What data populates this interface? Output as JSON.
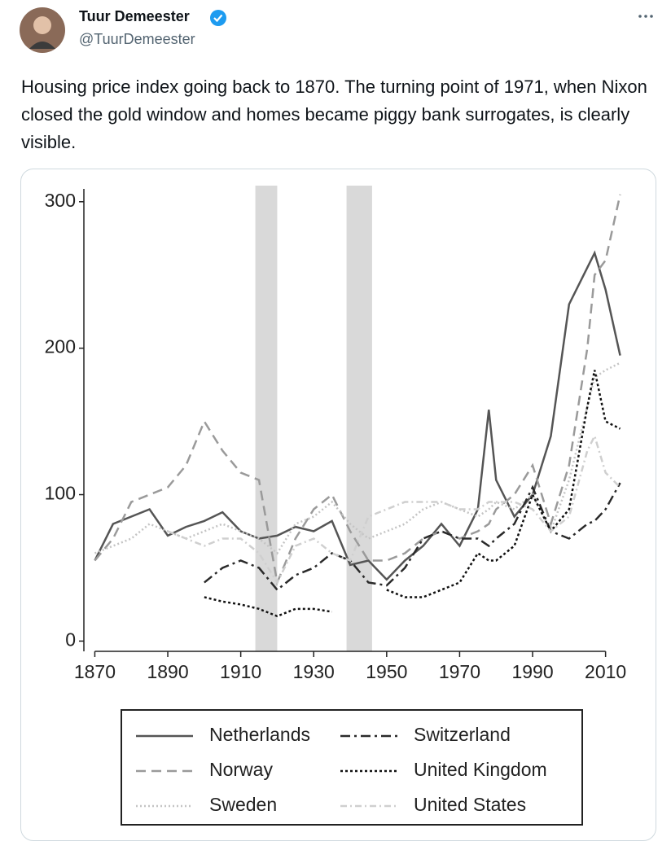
{
  "tweet": {
    "author": {
      "name": "Tuur Demeester",
      "handle": "@TuurDemeester"
    },
    "text": "Housing price index going back to 1870. The turning point of 1971, when Nixon closed the gold window and homes became piggy bank surrogates, is clearly visible."
  },
  "chart_data": {
    "type": "line",
    "x": [
      1870,
      1875,
      1880,
      1885,
      1890,
      1895,
      1900,
      1905,
      1910,
      1915,
      1920,
      1925,
      1930,
      1935,
      1940,
      1945,
      1950,
      1955,
      1960,
      1965,
      1970,
      1975,
      1978,
      1980,
      1985,
      1990,
      1995,
      2000,
      2005,
      2007,
      2010,
      2014
    ],
    "series": [
      {
        "name": "Netherlands",
        "color": "#555555",
        "dash": "none",
        "values": [
          55,
          80,
          85,
          90,
          72,
          78,
          82,
          88,
          75,
          70,
          72,
          78,
          75,
          82,
          52,
          55,
          42,
          55,
          65,
          80,
          65,
          90,
          158,
          110,
          85,
          100,
          140,
          230,
          255,
          265,
          240,
          195
        ]
      },
      {
        "name": "Norway",
        "color": "#9a9a9a",
        "dash": "12,7",
        "values": [
          55,
          70,
          95,
          100,
          105,
          120,
          150,
          130,
          115,
          110,
          40,
          70,
          90,
          100,
          75,
          55,
          55,
          60,
          70,
          75,
          70,
          75,
          80,
          90,
          100,
          120,
          80,
          120,
          200,
          250,
          260,
          305
        ]
      },
      {
        "name": "Sweden",
        "color": "#c4c4c4",
        "dash": "2,3",
        "values": [
          60,
          65,
          70,
          80,
          75,
          70,
          75,
          80,
          75,
          70,
          60,
          80,
          85,
          95,
          80,
          70,
          75,
          80,
          90,
          95,
          90,
          85,
          90,
          95,
          90,
          100,
          75,
          110,
          160,
          180,
          185,
          190
        ]
      },
      {
        "name": "Switzerland",
        "color": "#2a2a2a",
        "dash": "12,5,3,5",
        "values": [
          null,
          null,
          null,
          null,
          null,
          null,
          40,
          50,
          55,
          50,
          35,
          45,
          50,
          60,
          55,
          40,
          38,
          50,
          70,
          75,
          70,
          70,
          65,
          70,
          80,
          105,
          75,
          70,
          80,
          82,
          90,
          108
        ]
      },
      {
        "name": "United Kingdom",
        "color": "#111111",
        "dash": "3,3",
        "values": [
          null,
          null,
          null,
          null,
          null,
          null,
          30,
          27,
          25,
          22,
          17,
          22,
          22,
          20,
          null,
          null,
          35,
          30,
          30,
          35,
          40,
          60,
          55,
          55,
          65,
          100,
          75,
          90,
          160,
          185,
          150,
          145
        ]
      },
      {
        "name": "United States",
        "color": "#cfcfcf",
        "dash": "8,4,2,4",
        "values": [
          null,
          null,
          null,
          null,
          75,
          70,
          65,
          70,
          70,
          60,
          40,
          65,
          70,
          60,
          55,
          85,
          90,
          95,
          95,
          95,
          90,
          90,
          95,
          95,
          95,
          90,
          75,
          85,
          130,
          140,
          115,
          105
        ]
      }
    ],
    "shaded_spans": [
      [
        1914,
        1920
      ],
      [
        1939,
        1946
      ]
    ],
    "xlim": [
      1867,
      2017
    ],
    "ylim": [
      -7,
      311
    ],
    "xticks": [
      1870,
      1890,
      1910,
      1930,
      1950,
      1970,
      1990,
      2010
    ],
    "yticks": [
      0,
      100,
      200,
      300
    ]
  }
}
